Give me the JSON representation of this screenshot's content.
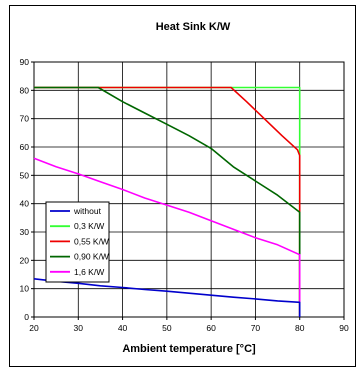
{
  "chart_data": {
    "type": "line",
    "title": "Heat Sink K/W",
    "xlabel": "Ambient temperature [°C]",
    "ylabel": "",
    "xlim": [
      20,
      90
    ],
    "ylim": [
      0,
      90
    ],
    "xticks": [
      20,
      30,
      40,
      50,
      60,
      70,
      80,
      90
    ],
    "yticks": [
      0,
      10,
      20,
      30,
      40,
      50,
      60,
      70,
      80,
      90
    ],
    "grid": true,
    "legend_position": "bottom-left",
    "series": [
      {
        "name": "without",
        "color": "#0000cc",
        "x": [
          20,
          25,
          30,
          35,
          40,
          45,
          50,
          55,
          60,
          65,
          70,
          75,
          80,
          80
        ],
        "y": [
          13.5,
          12.6,
          11.9,
          11.0,
          10.4,
          9.7,
          9.1,
          8.4,
          7.7,
          7.0,
          6.4,
          5.7,
          5.2,
          0
        ]
      },
      {
        "name": "0,3 K/W",
        "color": "#33ff33",
        "x": [
          20,
          35,
          50,
          65,
          80,
          80
        ],
        "y": [
          81,
          81,
          81,
          81,
          81,
          0
        ]
      },
      {
        "name": "0,55 K/W",
        "color": "#ee0000",
        "x": [
          20,
          40,
          64.5,
          68,
          72,
          76,
          79.5,
          80,
          80
        ],
        "y": [
          81,
          81,
          81,
          76,
          70,
          64,
          59,
          57,
          0
        ]
      },
      {
        "name": "0,90 K/W",
        "color": "#006600",
        "x": [
          20,
          34.5,
          40,
          45,
          50,
          55,
          60,
          65,
          70,
          75,
          80,
          80
        ],
        "y": [
          81,
          81,
          76,
          72,
          68,
          64,
          59.5,
          53,
          48,
          43,
          37,
          0
        ]
      },
      {
        "name": "1,6 K/W",
        "color": "#ff00ff",
        "x": [
          20,
          25,
          30,
          35,
          40,
          45,
          50,
          55,
          60,
          65,
          70,
          75,
          80,
          80
        ],
        "y": [
          56,
          53,
          50.5,
          47.7,
          45,
          42,
          39.5,
          37,
          34,
          31,
          28,
          25.5,
          22,
          0
        ]
      }
    ]
  }
}
